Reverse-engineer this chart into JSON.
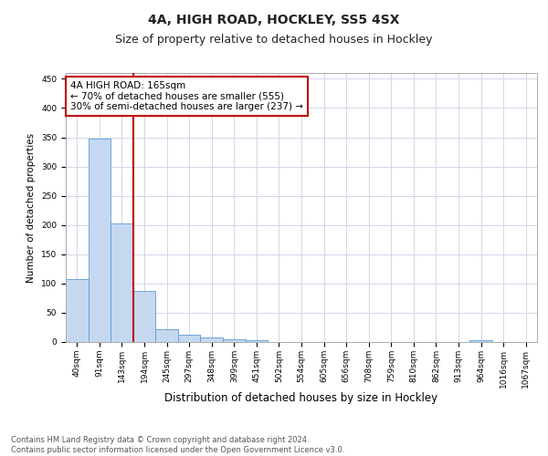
{
  "title1": "4A, HIGH ROAD, HOCKLEY, SS5 4SX",
  "title2": "Size of property relative to detached houses in Hockley",
  "xlabel": "Distribution of detached houses by size in Hockley",
  "ylabel": "Number of detached properties",
  "categories": [
    "40sqm",
    "91sqm",
    "143sqm",
    "194sqm",
    "245sqm",
    "297sqm",
    "348sqm",
    "399sqm",
    "451sqm",
    "502sqm",
    "554sqm",
    "605sqm",
    "656sqm",
    "708sqm",
    "759sqm",
    "810sqm",
    "862sqm",
    "913sqm",
    "964sqm",
    "1016sqm",
    "1067sqm"
  ],
  "values": [
    108,
    348,
    203,
    88,
    22,
    13,
    8,
    5,
    3,
    0,
    0,
    0,
    0,
    0,
    0,
    0,
    0,
    0,
    3,
    0,
    0
  ],
  "bar_color": "#c5d8f0",
  "bar_edge_color": "#5b9bd5",
  "vline_x": 2.5,
  "vline_color": "#c00000",
  "annotation_text": "4A HIGH ROAD: 165sqm\n← 70% of detached houses are smaller (555)\n30% of semi-detached houses are larger (237) →",
  "annotation_box_color": "#c00000",
  "ylim": [
    0,
    460
  ],
  "yticks": [
    0,
    50,
    100,
    150,
    200,
    250,
    300,
    350,
    400,
    450
  ],
  "footnote": "Contains HM Land Registry data © Crown copyright and database right 2024.\nContains public sector information licensed under the Open Government Licence v3.0.",
  "bg_color": "#ffffff",
  "grid_color": "#d0d8e8",
  "title1_fontsize": 10,
  "title2_fontsize": 9,
  "xlabel_fontsize": 8.5,
  "ylabel_fontsize": 7.5,
  "tick_fontsize": 6.5,
  "annotation_fontsize": 7.5,
  "footnote_fontsize": 6
}
